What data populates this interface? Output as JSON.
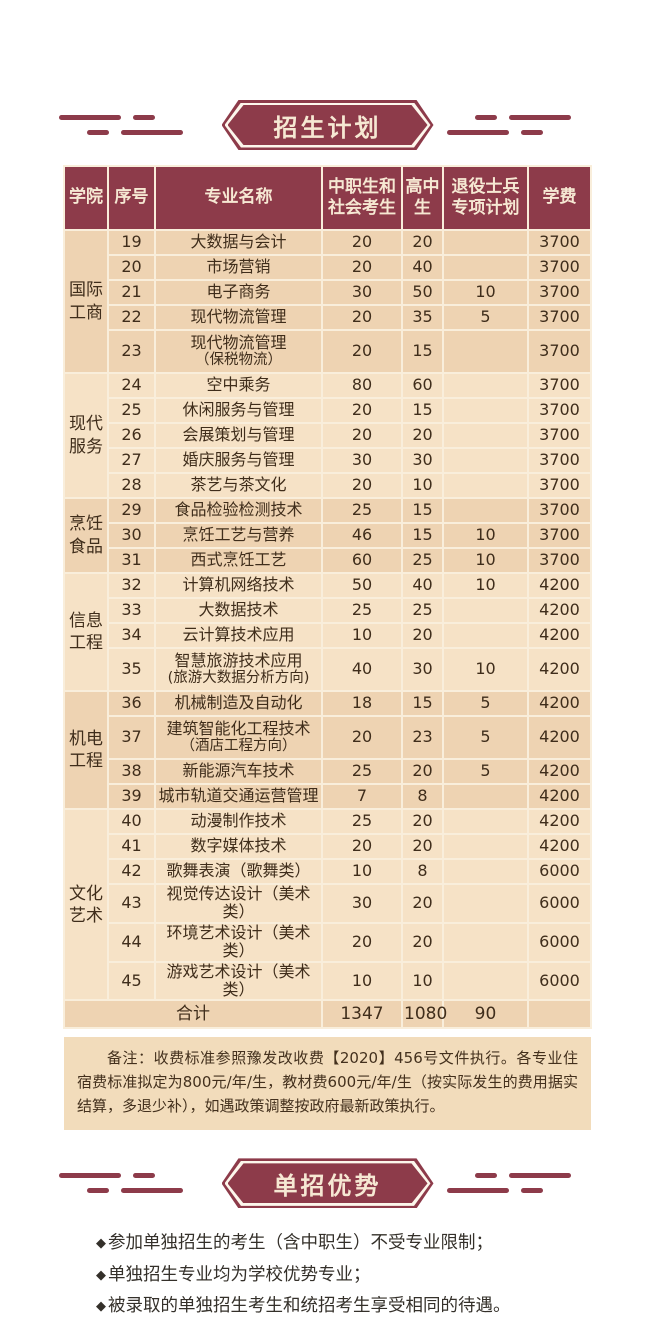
{
  "colors": {
    "maroon": "#8d3b4a",
    "header_text": "#f6e8d3",
    "row_dark": "#eed3b2",
    "row_light": "#f6e2c6",
    "grid_line": "#f9eedb",
    "body_text": "#3f2d1b",
    "note_bg": "#f2dcbb"
  },
  "sections": {
    "enrollment": {
      "badge": "招生计划"
    },
    "advantage": {
      "badge": "单招优势",
      "bullet_marker": "◆",
      "bullets": [
        "参加单独招生的考生（含中职生）不受专业限制；",
        "单独招生专业均为学校优势专业；",
        "被录取的单独招生考生和统招考生享受相同的待遇。"
      ]
    }
  },
  "table": {
    "columns": [
      "学院",
      "序号",
      "专业名称",
      "中职生和社会考生",
      "高中生",
      "退役士兵专项计划",
      "学费"
    ],
    "groups": [
      {
        "college": "国际工商",
        "shade": "dark",
        "rows": [
          {
            "no": "19",
            "major": "大数据与会计",
            "major_sub": "",
            "vocational_social": "20",
            "high_school": "20",
            "veteran": "",
            "tuition": "3700"
          },
          {
            "no": "20",
            "major": "市场营销",
            "major_sub": "",
            "vocational_social": "20",
            "high_school": "40",
            "veteran": "",
            "tuition": "3700"
          },
          {
            "no": "21",
            "major": "电子商务",
            "major_sub": "",
            "vocational_social": "30",
            "high_school": "50",
            "veteran": "10",
            "tuition": "3700"
          },
          {
            "no": "22",
            "major": "现代物流管理",
            "major_sub": "",
            "vocational_social": "20",
            "high_school": "35",
            "veteran": "5",
            "tuition": "3700"
          },
          {
            "no": "23",
            "major": "现代物流管理",
            "major_sub": "（保税物流）",
            "vocational_social": "20",
            "high_school": "15",
            "veteran": "",
            "tuition": "3700"
          }
        ]
      },
      {
        "college": "现代服务",
        "shade": "light",
        "rows": [
          {
            "no": "24",
            "major": "空中乘务",
            "major_sub": "",
            "vocational_social": "80",
            "high_school": "60",
            "veteran": "",
            "tuition": "3700"
          },
          {
            "no": "25",
            "major": "休闲服务与管理",
            "major_sub": "",
            "vocational_social": "20",
            "high_school": "15",
            "veteran": "",
            "tuition": "3700"
          },
          {
            "no": "26",
            "major": "会展策划与管理",
            "major_sub": "",
            "vocational_social": "20",
            "high_school": "20",
            "veteran": "",
            "tuition": "3700"
          },
          {
            "no": "27",
            "major": "婚庆服务与管理",
            "major_sub": "",
            "vocational_social": "30",
            "high_school": "30",
            "veteran": "",
            "tuition": "3700"
          },
          {
            "no": "28",
            "major": "茶艺与茶文化",
            "major_sub": "",
            "vocational_social": "20",
            "high_school": "10",
            "veteran": "",
            "tuition": "3700"
          }
        ]
      },
      {
        "college": "烹饪食品",
        "shade": "dark",
        "rows": [
          {
            "no": "29",
            "major": "食品检验检测技术",
            "major_sub": "",
            "vocational_social": "25",
            "high_school": "15",
            "veteran": "",
            "tuition": "3700"
          },
          {
            "no": "30",
            "major": "烹饪工艺与营养",
            "major_sub": "",
            "vocational_social": "46",
            "high_school": "15",
            "veteran": "10",
            "tuition": "3700"
          },
          {
            "no": "31",
            "major": "西式烹饪工艺",
            "major_sub": "",
            "vocational_social": "60",
            "high_school": "25",
            "veteran": "10",
            "tuition": "3700"
          }
        ]
      },
      {
        "college": "信息工程",
        "shade": "light",
        "rows": [
          {
            "no": "32",
            "major": "计算机网络技术",
            "major_sub": "",
            "vocational_social": "50",
            "high_school": "40",
            "veteran": "10",
            "tuition": "4200"
          },
          {
            "no": "33",
            "major": "大数据技术",
            "major_sub": "",
            "vocational_social": "25",
            "high_school": "25",
            "veteran": "",
            "tuition": "4200"
          },
          {
            "no": "34",
            "major": "云计算技术应用",
            "major_sub": "",
            "vocational_social": "10",
            "high_school": "20",
            "veteran": "",
            "tuition": "4200"
          },
          {
            "no": "35",
            "major": "智慧旅游技术应用",
            "major_sub": "(旅游大数据分析方向)",
            "vocational_social": "40",
            "high_school": "30",
            "veteran": "10",
            "tuition": "4200"
          }
        ]
      },
      {
        "college": "机电工程",
        "shade": "dark",
        "rows": [
          {
            "no": "36",
            "major": "机械制造及自动化",
            "major_sub": "",
            "vocational_social": "18",
            "high_school": "15",
            "veteran": "5",
            "tuition": "4200"
          },
          {
            "no": "37",
            "major": "建筑智能化工程技术",
            "major_sub": "（酒店工程方向）",
            "vocational_social": "20",
            "high_school": "23",
            "veteran": "5",
            "tuition": "4200"
          },
          {
            "no": "38",
            "major": "新能源汽车技术",
            "major_sub": "",
            "vocational_social": "25",
            "high_school": "20",
            "veteran": "5",
            "tuition": "4200"
          },
          {
            "no": "39",
            "major": "城市轨道交通运营管理",
            "major_sub": "",
            "vocational_social": "7",
            "high_school": "8",
            "veteran": "",
            "tuition": "4200"
          }
        ]
      },
      {
        "college": "文化艺术",
        "shade": "light",
        "rows": [
          {
            "no": "40",
            "major": "动漫制作技术",
            "major_sub": "",
            "vocational_social": "25",
            "high_school": "20",
            "veteran": "",
            "tuition": "4200"
          },
          {
            "no": "41",
            "major": "数字媒体技术",
            "major_sub": "",
            "vocational_social": "20",
            "high_school": "20",
            "veteran": "",
            "tuition": "4200"
          },
          {
            "no": "42",
            "major": "歌舞表演（歌舞类）",
            "major_sub": "",
            "vocational_social": "10",
            "high_school": "8",
            "veteran": "",
            "tuition": "6000"
          },
          {
            "no": "43",
            "major": "视觉传达设计（美术类）",
            "major_sub": "",
            "vocational_social": "30",
            "high_school": "20",
            "veteran": "",
            "tuition": "6000"
          },
          {
            "no": "44",
            "major": "环境艺术设计（美术类）",
            "major_sub": "",
            "vocational_social": "20",
            "high_school": "20",
            "veteran": "",
            "tuition": "6000"
          },
          {
            "no": "45",
            "major": "游戏艺术设计（美术类）",
            "major_sub": "",
            "vocational_social": "10",
            "high_school": "10",
            "veteran": "",
            "tuition": "6000"
          }
        ]
      }
    ],
    "total": {
      "label": "合计",
      "shade": "dark",
      "vocational_social": "1347",
      "high_school": "1080",
      "veteran": "90",
      "tuition": ""
    }
  },
  "note": {
    "text": "备注：收费标准参照豫发改收费【2020】456号文件执行。各专业住宿费标准拟定为800元/年/生，教材费600元/年/生（按实际发生的费用据实结算，多退少补），如遇政策调整按政府最新政策执行。"
  }
}
